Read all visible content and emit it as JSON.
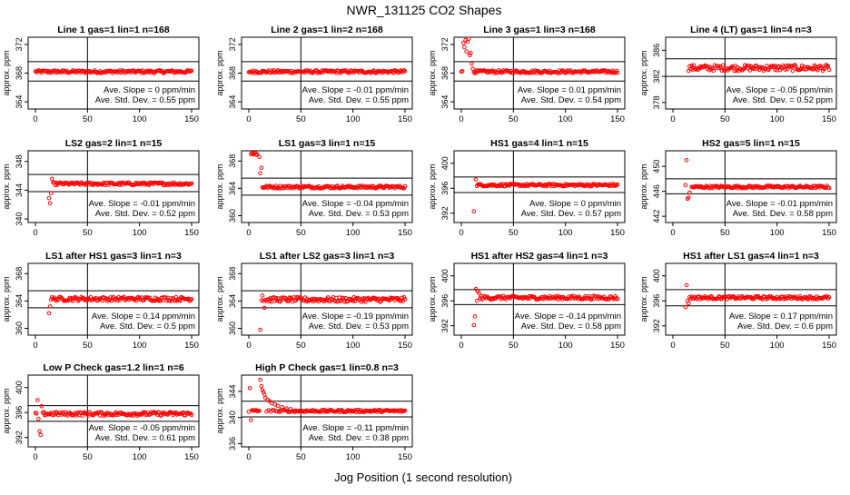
{
  "title": "NWR_131125  CO2 Shapes",
  "xlabel": "Jog Position (1 second resolution)",
  "style": {
    "point_color": "#ff0000",
    "line_color": "#000000"
  },
  "chart_data": [
    {
      "type": "scatter",
      "title": "Line 1 gas=1 lin=1 n=168",
      "ylabel": "approx. ppm",
      "xlim": [
        0,
        150
      ],
      "xticks": [
        0,
        50,
        100,
        150
      ],
      "ylim": [
        363,
        373
      ],
      "yticks": [
        364,
        368,
        372
      ],
      "hlines": [
        366.9,
        369.6
      ],
      "vline": 50,
      "slope": "Ave. Slope = 0  ppm/min",
      "sd": "Ave. Std. Dev. = 0.55  ppm",
      "series": [
        {
          "x_start": 0,
          "x_end": 150,
          "baseline": 368.2,
          "noise": 0.2,
          "spikes": []
        }
      ]
    },
    {
      "type": "scatter",
      "title": "Line 2 gas=1 lin=2 n=168",
      "ylabel": "approx. ppm",
      "xlim": [
        0,
        150
      ],
      "xticks": [
        0,
        50,
        100,
        150
      ],
      "ylim": [
        363,
        373
      ],
      "yticks": [
        364,
        368,
        372
      ],
      "hlines": [
        366.9,
        369.6
      ],
      "vline": 50,
      "slope": "Ave. Slope = -0.01  ppm/min",
      "sd": "Ave. Std. Dev. = 0.55  ppm",
      "series": [
        {
          "x_start": 0,
          "x_end": 150,
          "baseline": 368.2,
          "noise": 0.2,
          "spikes": []
        }
      ]
    },
    {
      "type": "scatter",
      "title": "Line 3 gas=1 lin=3 n=168",
      "ylabel": "approx. ppm",
      "xlim": [
        0,
        150
      ],
      "xticks": [
        0,
        50,
        100,
        150
      ],
      "ylim": [
        363,
        373
      ],
      "yticks": [
        364,
        368,
        372
      ],
      "hlines": [
        366.9,
        369.6
      ],
      "vline": 50,
      "slope": "Ave. Slope = 0.01  ppm/min",
      "sd": "Ave. Std. Dev. = 0.54  ppm",
      "series": [
        {
          "x_start": 0,
          "x_end": 150,
          "baseline": 368.2,
          "noise": 0.2,
          "spikes": [
            [
              2,
              372.2
            ],
            [
              3,
              371.6
            ],
            [
              4,
              372.6
            ],
            [
              5,
              371.0
            ],
            [
              6,
              372.4
            ],
            [
              7,
              372.8
            ],
            [
              8,
              370.5
            ],
            [
              9,
              370.8
            ],
            [
              10,
              369.3
            ],
            [
              11,
              368.6
            ]
          ]
        }
      ]
    },
    {
      "type": "scatter",
      "title": "Line 4 (LT) gas=1 lin=4 n=3",
      "ylabel": "approx. ppm",
      "xlim": [
        0,
        150
      ],
      "xticks": [
        0,
        50,
        100,
        150
      ],
      "ylim": [
        377,
        388
      ],
      "yticks": [
        378,
        382,
        386
      ],
      "hlines": [
        382.0,
        384.7
      ],
      "vline": 50,
      "slope": "Ave. Slope = -0.05  ppm/min",
      "sd": "Ave. Std. Dev. = 0.52  ppm",
      "series": [
        {
          "x_start": 15,
          "x_end": 150,
          "baseline": 383.3,
          "noise": 0.45,
          "spikes": []
        }
      ]
    },
    {
      "type": "scatter",
      "title": "LS2 gas=2 lin=1 n=15",
      "ylabel": "approx. ppm",
      "xlim": [
        0,
        150
      ],
      "xticks": [
        0,
        50,
        100,
        150
      ],
      "ylim": [
        339.5,
        349.5
      ],
      "yticks": [
        340,
        344,
        348
      ],
      "hlines": [
        343.8,
        346.2
      ],
      "vline": 50,
      "slope": "Ave. Slope = -0.01  ppm/min",
      "sd": "Ave. Std. Dev. = 0.52  ppm",
      "series": [
        {
          "x_start": 13,
          "x_end": 150,
          "baseline": 344.9,
          "noise": 0.2,
          "spikes": [
            [
              13,
              342.9
            ],
            [
              14,
              342.2
            ],
            [
              15,
              343.6
            ],
            [
              16,
              345.6
            ]
          ]
        }
      ]
    },
    {
      "type": "scatter",
      "title": "LS1 gas=3 lin=1 n=15",
      "ylabel": "approx. ppm",
      "xlim": [
        0,
        150
      ],
      "xticks": [
        0,
        50,
        100,
        150
      ],
      "ylim": [
        359,
        369.5
      ],
      "yticks": [
        360,
        364,
        368
      ],
      "hlines": [
        363.0,
        365.5
      ],
      "vline": 50,
      "slope": "Ave. Slope = -0.04  ppm/min",
      "sd": "Ave. Std. Dev. = 0.53  ppm",
      "series": [
        {
          "x_start": 12,
          "x_end": 150,
          "baseline": 364.2,
          "noise": 0.2,
          "spikes": [
            [
              2,
              369.0
            ],
            [
              3,
              369.2
            ],
            [
              4,
              369.0
            ],
            [
              5,
              369.1
            ],
            [
              6,
              369.2
            ],
            [
              7,
              368.9
            ],
            [
              8,
              369.0
            ],
            [
              10,
              368.6
            ],
            [
              11,
              366.2
            ],
            [
              12,
              367.0
            ]
          ]
        }
      ]
    },
    {
      "type": "scatter",
      "title": "HS1 gas=4 lin=1 n=15",
      "ylabel": "approx. ppm",
      "xlim": [
        0,
        150
      ],
      "xticks": [
        0,
        50,
        100,
        150
      ],
      "ylim": [
        390.5,
        402
      ],
      "yticks": [
        392,
        396,
        400
      ],
      "hlines": [
        395.3,
        397.8
      ],
      "vline": 50,
      "slope": "Ave. Slope = 0  ppm/min",
      "sd": "Ave. Std. Dev. = 0.57  ppm",
      "series": [
        {
          "x_start": 15,
          "x_end": 150,
          "baseline": 396.5,
          "noise": 0.2,
          "spikes": [
            [
              12,
              392.3
            ],
            [
              14,
              397.4
            ]
          ]
        }
      ]
    },
    {
      "type": "scatter",
      "title": "HS2 gas=5 lin=1 n=15",
      "ylabel": "approx. ppm",
      "xlim": [
        0,
        150
      ],
      "xticks": [
        0,
        50,
        100,
        150
      ],
      "ylim": [
        441,
        452.5
      ],
      "yticks": [
        442,
        446,
        450
      ],
      "hlines": [
        445.6,
        448.0
      ],
      "vline": 50,
      "slope": "Ave. Slope = -0.01  ppm/min",
      "sd": "Ave. Std. Dev. = 0.58  ppm",
      "series": [
        {
          "x_start": 18,
          "x_end": 150,
          "baseline": 446.7,
          "noise": 0.2,
          "spikes": [
            [
              12,
              447.0
            ],
            [
              13,
              451.0
            ],
            [
              14,
              444.8
            ],
            [
              15,
              445.0
            ],
            [
              16,
              445.8
            ]
          ]
        }
      ]
    },
    {
      "type": "scatter",
      "title": "LS1 after HS1 gas=3 lin=1 n=3",
      "ylabel": "approx. ppm",
      "xlim": [
        0,
        150
      ],
      "xticks": [
        0,
        50,
        100,
        150
      ],
      "ylim": [
        359,
        369.5
      ],
      "yticks": [
        360,
        364,
        368
      ],
      "hlines": [
        363.0,
        365.5
      ],
      "vline": 50,
      "slope": "Ave. Slope = 0.14  ppm/min",
      "sd": "Ave. Std. Dev. = 0.5  ppm",
      "series": [
        {
          "x_start": 13,
          "x_end": 150,
          "baseline": 364.3,
          "noise": 0.3,
          "spikes": [
            [
              13,
              362.2
            ],
            [
              14,
              363.2
            ]
          ]
        }
      ]
    },
    {
      "type": "scatter",
      "title": "LS1 after LS2 gas=3 lin=1 n=3",
      "ylabel": "approx. ppm",
      "xlim": [
        0,
        150
      ],
      "xticks": [
        0,
        50,
        100,
        150
      ],
      "ylim": [
        359,
        369.5
      ],
      "yticks": [
        360,
        364,
        368
      ],
      "hlines": [
        363.0,
        365.5
      ],
      "vline": 50,
      "slope": "Ave. Slope = -0.19  ppm/min",
      "sd": "Ave. Std. Dev. = 0.53  ppm",
      "series": [
        {
          "x_start": 12,
          "x_end": 150,
          "baseline": 364.2,
          "noise": 0.35,
          "spikes": [
            [
              11,
              359.8
            ],
            [
              13,
              364.8
            ],
            [
              15,
              363.0
            ]
          ]
        }
      ]
    },
    {
      "type": "scatter",
      "title": "HS1 after HS2 gas=4 lin=1 n=3",
      "ylabel": "approx. ppm",
      "xlim": [
        0,
        150
      ],
      "xticks": [
        0,
        50,
        100,
        150
      ],
      "ylim": [
        390.5,
        402
      ],
      "yticks": [
        392,
        396,
        400
      ],
      "hlines": [
        395.4,
        397.8
      ],
      "vline": 50,
      "slope": "Ave. Slope = -0.14  ppm/min",
      "sd": "Ave. Std. Dev. = 0.58  ppm",
      "series": [
        {
          "x_start": 14,
          "x_end": 150,
          "baseline": 396.5,
          "noise": 0.3,
          "spikes": [
            [
              12,
              392.1
            ],
            [
              13,
              393.5
            ],
            [
              14,
              397.9
            ],
            [
              15,
              396.0
            ],
            [
              16,
              397.5
            ],
            [
              17,
              397.2
            ]
          ]
        }
      ]
    },
    {
      "type": "scatter",
      "title": "HS1 after LS1 gas=4 lin=1 n=3",
      "ylabel": "approx. ppm",
      "xlim": [
        0,
        150
      ],
      "xticks": [
        0,
        50,
        100,
        150
      ],
      "ylim": [
        390.5,
        402
      ],
      "yticks": [
        392,
        396,
        400
      ],
      "hlines": [
        395.2,
        397.8
      ],
      "vline": 50,
      "slope": "Ave. Slope = 0.17  ppm/min",
      "sd": "Ave. Std. Dev. = 0.6  ppm",
      "series": [
        {
          "x_start": 16,
          "x_end": 150,
          "baseline": 396.5,
          "noise": 0.25,
          "spikes": [
            [
              12,
              395.0
            ],
            [
              13,
              398.5
            ],
            [
              14,
              396.0
            ],
            [
              15,
              395.6
            ]
          ]
        }
      ]
    },
    {
      "type": "scatter",
      "title": "Low P Check gas=1.2 lin=1 n=6",
      "ylabel": "approx. ppm",
      "xlim": [
        0,
        150
      ],
      "xticks": [
        0,
        50,
        100,
        150
      ],
      "ylim": [
        390.5,
        402
      ],
      "yticks": [
        392,
        396,
        400
      ],
      "hlines": [
        394.6,
        397.1
      ],
      "vline": 50,
      "slope": "Ave. Slope = -0.05  ppm/min",
      "sd": "Ave. Std. Dev. = 0.61  ppm",
      "series": [
        {
          "x_start": 0,
          "x_end": 150,
          "baseline": 395.8,
          "noise": 0.3,
          "spikes": [
            [
              2,
              398.0
            ],
            [
              3,
              395.0
            ],
            [
              4,
              393.0
            ],
            [
              5,
              392.4
            ],
            [
              6,
              397.0
            ]
          ]
        }
      ]
    },
    {
      "type": "scatter",
      "title": "High P Check gas=1 lin=0.8 n=3",
      "ylabel": "approx. ppm",
      "xlim": [
        0,
        150
      ],
      "xticks": [
        0,
        50,
        100,
        150
      ],
      "ylim": [
        335.5,
        346.5
      ],
      "yticks": [
        336,
        340,
        344
      ],
      "hlines": [
        340.1,
        342.5
      ],
      "vline": 50,
      "slope": "Ave. Slope = -0.11  ppm/min",
      "sd": "Ave. Std. Dev. = 0.38  ppm",
      "series": [
        {
          "x_start": 0,
          "x_end": 150,
          "baseline": 341.0,
          "noise": 0.18,
          "spikes": [
            [
              1,
              344.5
            ],
            [
              2,
              339.6
            ],
            [
              11,
              345.8
            ],
            [
              12,
              344.8
            ],
            [
              13,
              344.2
            ],
            [
              14,
              343.9
            ],
            [
              15,
              343.5
            ],
            [
              16,
              343.0
            ],
            [
              18,
              342.7
            ],
            [
              20,
              342.5
            ],
            [
              22,
              342.2
            ],
            [
              25,
              342.0
            ],
            [
              28,
              341.8
            ],
            [
              32,
              341.6
            ],
            [
              36,
              341.4
            ],
            [
              40,
              341.3
            ]
          ]
        }
      ]
    }
  ]
}
